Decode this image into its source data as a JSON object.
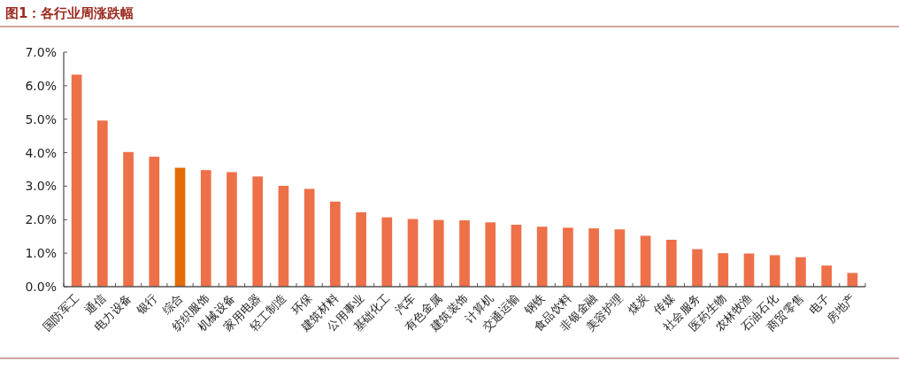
{
  "chart_data": {
    "type": "bar",
    "title": "图1：各行业周涨跌幅",
    "categories": [
      "国防军工",
      "通信",
      "电力设备",
      "银行",
      "综合",
      "纺织服饰",
      "机械设备",
      "家用电器",
      "轻工制造",
      "环保",
      "建筑材料",
      "公用事业",
      "基础化工",
      "汽车",
      "有色金属",
      "建筑装饰",
      "计算机",
      "交通运输",
      "钢铁",
      "食品饮料",
      "非银金融",
      "美容护理",
      "煤炭",
      "传媒",
      "社会服务",
      "医药生物",
      "农林牧渔",
      "石油石化",
      "商贸零售",
      "电子",
      "房地产"
    ],
    "values": [
      6.33,
      4.96,
      4.02,
      3.88,
      3.55,
      3.48,
      3.42,
      3.29,
      3.01,
      2.92,
      2.54,
      2.22,
      2.07,
      2.02,
      1.99,
      1.98,
      1.92,
      1.85,
      1.79,
      1.76,
      1.74,
      1.71,
      1.52,
      1.4,
      1.12,
      1.0,
      0.99,
      0.94,
      0.88,
      0.63,
      0.41
    ],
    "colors": [
      "#ed7049",
      "#ed7049",
      "#ed7049",
      "#ed7049",
      "#e36c09",
      "#ed7049",
      "#ed7049",
      "#ed7049",
      "#ed7049",
      "#ed7049",
      "#ed7049",
      "#ed7049",
      "#ed7049",
      "#ed7049",
      "#ed7049",
      "#ed7049",
      "#ed7049",
      "#ed7049",
      "#ed7049",
      "#ed7049",
      "#ed7049",
      "#ed7049",
      "#ed7049",
      "#ed7049",
      "#ed7049",
      "#ed7049",
      "#ed7049",
      "#ed7049",
      "#ed7049",
      "#ed7049",
      "#ed7049"
    ],
    "ylim": [
      0,
      7
    ],
    "yticks": [
      {
        "value": 0,
        "label": "0.0%"
      },
      {
        "value": 1,
        "label": "1.0%"
      },
      {
        "value": 2,
        "label": "2.0%"
      },
      {
        "value": 3,
        "label": "3.0%"
      },
      {
        "value": 4,
        "label": "4.0%"
      },
      {
        "value": 5,
        "label": "5.0%"
      },
      {
        "value": 6,
        "label": "6.0%"
      },
      {
        "value": 7,
        "label": "7.0%"
      }
    ],
    "grid": false
  }
}
